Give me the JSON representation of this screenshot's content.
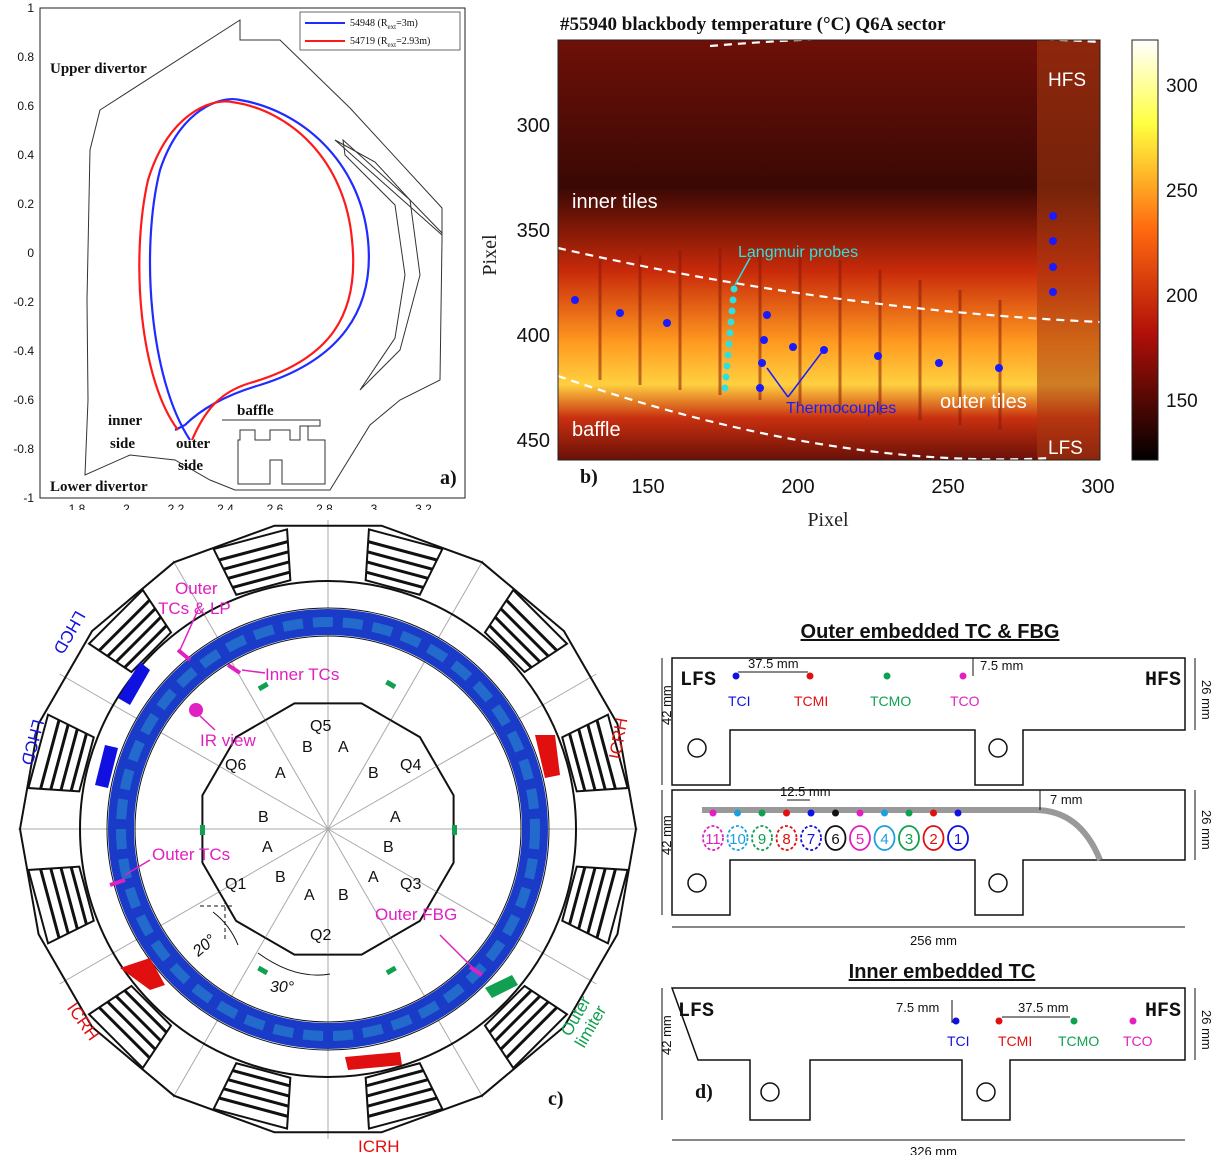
{
  "panel_a": {
    "label": "a)",
    "upper_divertor": "Upper divertor",
    "lower_divertor": "Lower divertor",
    "baffle": "baffle",
    "inner_side_1": "inner",
    "inner_side_2": "side",
    "outer_side_1": "outer",
    "outer_side_2": "side",
    "legend": [
      {
        "name": "54948 (R",
        "sub": "ext",
        "rest": "=3m)",
        "color": "#1f2bff"
      },
      {
        "name": "54719 (R",
        "sub": "ext",
        "rest": "=2.93m)",
        "color": "#ff1a1a"
      }
    ],
    "xticks": [
      "1.8",
      "2",
      "2.2",
      "2.4",
      "2.6",
      "2.8",
      "3",
      "3.2"
    ],
    "yticks": [
      "1",
      "0.8",
      "0.6",
      "0.4",
      "0.2",
      "0",
      "-0.2",
      "-0.4",
      "-0.6",
      "-0.8",
      "-1"
    ]
  },
  "panel_b": {
    "label": "b)",
    "title": "#55940 blackbody temperature (°C) Q6A sector",
    "ylabel": "Pixel",
    "xlabel": "Pixel",
    "xticks": [
      "150",
      "200",
      "250",
      "300"
    ],
    "yticks": [
      "300",
      "350",
      "400",
      "450"
    ],
    "colorbar_ticks": [
      "300",
      "250",
      "200",
      "150"
    ],
    "hfs": "HFS",
    "lfs": "LFS",
    "inner_tiles": "inner tiles",
    "outer_tiles": "outer tiles",
    "baffle": "baffle",
    "langmuir": "Langmuir probes",
    "thermocouples": "Thermocouples"
  },
  "panel_c": {
    "label": "c)",
    "sectors": [
      "Q1",
      "Q2",
      "Q3",
      "Q4",
      "Q5",
      "Q6"
    ],
    "sub_a": "A",
    "sub_b": "B",
    "outer_tcs_lp_1": "Outer",
    "outer_tcs_lp_2": "TCs & LP",
    "inner_tcs": "Inner  TCs",
    "ir_view": "IR view",
    "outer_tcs": "Outer TCs",
    "outer_fbg": "Outer FBG",
    "outer_limiter_1": "Outer",
    "outer_limiter_2": "limiter",
    "lhcd": "LHCD",
    "icrh": "ICRH",
    "angle_20": "20°",
    "angle_30": "30°"
  },
  "panel_d": {
    "label": "d)",
    "title_outer": "Outer embedded TC & FBG",
    "title_inner": "Inner embedded TC",
    "lfs": "LFS",
    "hfs": "HFS",
    "dim_37": "37.5 mm",
    "dim_75": "7.5 mm",
    "dim_125": "12.5 mm",
    "dim_7": "7 mm",
    "dim_42": "42 mm",
    "dim_26": "26 mm",
    "dim_256": "256 mm",
    "dim_326": "326 mm",
    "tci": "TCI",
    "tcmi": "TCMI",
    "tcmo": "TCMO",
    "tco": "TCO",
    "fbg_numbers": [
      "11",
      "10",
      "9",
      "8",
      "7",
      "6",
      "5",
      "4",
      "3",
      "2",
      "1"
    ]
  }
}
